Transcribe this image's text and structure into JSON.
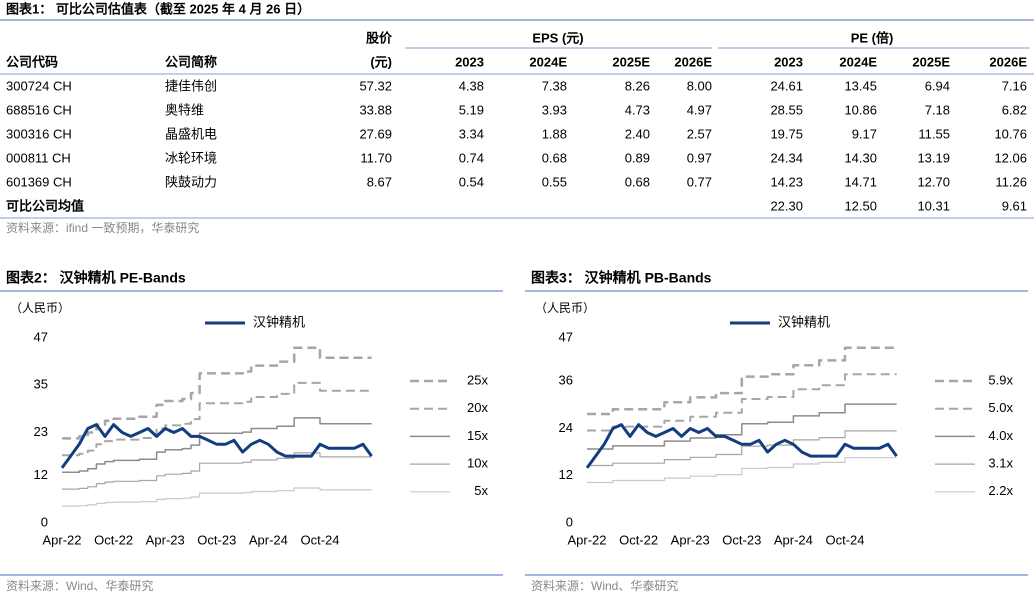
{
  "table": {
    "title": "图表1：  可比公司估值表（截至 2025 年 4 月 26 日）",
    "header_top": [
      "股价",
      "EPS (元)",
      "PE (倍)"
    ],
    "header": [
      "公司代码",
      "公司简称",
      "(元)",
      "2023",
      "2024E",
      "2025E",
      "2026E",
      "2023",
      "2024E",
      "2025E",
      "2026E"
    ],
    "rows": [
      [
        "300724 CH",
        "捷佳伟创",
        "57.32",
        "4.38",
        "7.38",
        "8.26",
        "8.00",
        "24.61",
        "13.45",
        "6.94",
        "7.16"
      ],
      [
        "688516 CH",
        "奥特维",
        "33.88",
        "5.19",
        "3.93",
        "4.73",
        "4.97",
        "28.55",
        "10.86",
        "7.18",
        "6.82"
      ],
      [
        "300316 CH",
        "晶盛机电",
        "27.69",
        "3.34",
        "1.88",
        "2.40",
        "2.57",
        "19.75",
        "9.17",
        "11.55",
        "10.76"
      ],
      [
        "000811 CH",
        "冰轮环境",
        "11.70",
        "0.74",
        "0.68",
        "0.89",
        "0.97",
        "24.34",
        "14.30",
        "13.19",
        "12.06"
      ],
      [
        "601369 CH",
        "陕鼓动力",
        "8.67",
        "0.54",
        "0.55",
        "0.68",
        "0.77",
        "14.23",
        "14.71",
        "12.70",
        "11.26"
      ]
    ],
    "average": {
      "label": "可比公司均值",
      "values": [
        "22.30",
        "12.50",
        "10.31",
        "9.61"
      ]
    },
    "source": "资料来源：ifind 一致预期，华泰研究"
  },
  "chart_data": [
    {
      "type": "line",
      "title": "图表2：  汉钟精机 PE-Bands",
      "y_label": "（人民币）",
      "source": "资料来源：Wind、华泰研究",
      "categories": [
        "Apr-22",
        null,
        null,
        null,
        null,
        null,
        "Oct-22",
        null,
        null,
        null,
        null,
        null,
        "Apr-23",
        null,
        null,
        null,
        null,
        null,
        "Oct-23",
        null,
        null,
        null,
        null,
        null,
        "Apr-24",
        null,
        null,
        null,
        null,
        null,
        "Oct-24",
        null,
        null,
        null,
        null,
        null,
        null
      ],
      "ylim": [
        0,
        47
      ],
      "yticks": [
        0,
        12,
        23,
        35,
        47
      ],
      "grid": false,
      "series": [
        {
          "name": "汉钟精机",
          "color": "#133d7f",
          "dash": false,
          "width": 3,
          "values": [
            14,
            17,
            20,
            24,
            25,
            22,
            25,
            23,
            22,
            23,
            24,
            22,
            24,
            23,
            24,
            22,
            22,
            21,
            20,
            20,
            21,
            18,
            20,
            21,
            20,
            18,
            17,
            17,
            17,
            17,
            20,
            19,
            19,
            19,
            19,
            20,
            17
          ]
        },
        {
          "name": "25x",
          "color": "#a6a6a6",
          "dash": true,
          "width": 2.5,
          "values": [
            21.5,
            21.5,
            22,
            23,
            25,
            26,
            26.5,
            26.5,
            26.5,
            27,
            27,
            30,
            31,
            31,
            31.5,
            33,
            38,
            38,
            38,
            38,
            38,
            38.5,
            40,
            40,
            40,
            41,
            41,
            44.5,
            44.5,
            44.5,
            42,
            42,
            42,
            42,
            42,
            42,
            42
          ]
        },
        {
          "name": "20x",
          "color": "#a6a6a6",
          "dash": true,
          "width": 2,
          "values": [
            17.2,
            17.2,
            17.6,
            18.4,
            20,
            20.8,
            21.2,
            21.2,
            21.2,
            21.6,
            21.6,
            24,
            24.8,
            24.8,
            25.2,
            26.4,
            30.4,
            30.4,
            30.4,
            30.4,
            30.4,
            30.8,
            32,
            32,
            32,
            32.8,
            32.8,
            35.6,
            35.6,
            35.6,
            33.6,
            33.6,
            33.6,
            33.6,
            33.6,
            33.6,
            33.6
          ]
        },
        {
          "name": "15x",
          "color": "#8c8c8c",
          "dash": false,
          "width": 1.5,
          "values": [
            12.9,
            12.9,
            13.2,
            13.8,
            15,
            15.6,
            15.9,
            15.9,
            15.9,
            16.2,
            16.2,
            18,
            18.6,
            18.6,
            18.9,
            19.8,
            22.8,
            22.8,
            22.8,
            22.8,
            22.8,
            23.1,
            24,
            24,
            24,
            24.6,
            24.6,
            26.7,
            26.7,
            26.7,
            25.2,
            25.2,
            25.2,
            25.2,
            25.2,
            25.2,
            25.2
          ]
        },
        {
          "name": "10x",
          "color": "#a6a6a6",
          "dash": false,
          "width": 1.2,
          "values": [
            8.6,
            8.6,
            8.8,
            9.2,
            10,
            10.4,
            10.6,
            10.6,
            10.6,
            10.8,
            10.8,
            12,
            12.4,
            12.4,
            12.6,
            13.2,
            15.2,
            15.2,
            15.2,
            15.2,
            15.2,
            15.4,
            16,
            16,
            16,
            16.4,
            16.4,
            17.8,
            17.8,
            17.8,
            16.8,
            16.8,
            16.8,
            16.8,
            16.8,
            16.8,
            16.8
          ]
        },
        {
          "name": "5x",
          "color": "#c8c8c8",
          "dash": false,
          "width": 1.2,
          "values": [
            4.3,
            4.3,
            4.4,
            4.6,
            5,
            5.2,
            5.3,
            5.3,
            5.3,
            5.4,
            5.4,
            6,
            6.2,
            6.2,
            6.3,
            6.6,
            7.6,
            7.6,
            7.6,
            7.6,
            7.6,
            7.7,
            8,
            8,
            8,
            8.2,
            8.2,
            8.9,
            8.9,
            8.9,
            8.4,
            8.4,
            8.4,
            8.4,
            8.4,
            8.4,
            8.4
          ]
        }
      ]
    },
    {
      "type": "line",
      "title": "图表3：  汉钟精机 PB-Bands",
      "y_label": "（人民币）",
      "source": "资料来源：Wind、华泰研究",
      "categories": [
        "Apr-22",
        null,
        null,
        null,
        null,
        null,
        "Oct-22",
        null,
        null,
        null,
        null,
        null,
        "Apr-23",
        null,
        null,
        null,
        null,
        null,
        "Oct-23",
        null,
        null,
        null,
        null,
        null,
        "Apr-24",
        null,
        null,
        null,
        null,
        null,
        "Oct-24",
        null,
        null,
        null,
        null,
        null,
        null
      ],
      "ylim": [
        0,
        47
      ],
      "yticks": [
        0,
        12,
        24,
        36,
        47
      ],
      "grid": false,
      "series": [
        {
          "name": "汉钟精机",
          "color": "#133d7f",
          "dash": false,
          "width": 3,
          "values": [
            14,
            17,
            20,
            24,
            25,
            22,
            25,
            23,
            22,
            23,
            24,
            22,
            24,
            23,
            24,
            22,
            22,
            21,
            20,
            20,
            21,
            18,
            20,
            21,
            20,
            18,
            17,
            17,
            17,
            17,
            20,
            19,
            19,
            19,
            19,
            20,
            17
          ]
        },
        {
          "name": "5.9x",
          "color": "#a6a6a6",
          "dash": true,
          "width": 2.5,
          "values": [
            27.7,
            27.7,
            27.7,
            28.9,
            28.9,
            28.9,
            28.9,
            28.9,
            28.9,
            30.7,
            30.7,
            30.7,
            31.9,
            31.9,
            31.9,
            33,
            33,
            33,
            37.2,
            37.2,
            37.2,
            37.8,
            37.8,
            37.8,
            40.1,
            40.1,
            40.1,
            41.3,
            41.3,
            41.3,
            44.5,
            44.5,
            44.5,
            44.5,
            44.5,
            44.5,
            44.5
          ]
        },
        {
          "name": "5.0x",
          "color": "#a6a6a6",
          "dash": true,
          "width": 2,
          "values": [
            23.5,
            23.5,
            23.5,
            24.5,
            24.5,
            24.5,
            24.5,
            24.5,
            24.5,
            26,
            26,
            26,
            27,
            27,
            27,
            28,
            28,
            28,
            31.5,
            31.5,
            31.5,
            32,
            32,
            32,
            34,
            34,
            34,
            35,
            35,
            35,
            37.8,
            37.8,
            37.8,
            37.8,
            37.8,
            37.8,
            37.8
          ]
        },
        {
          "name": "4.0x",
          "color": "#8c8c8c",
          "dash": false,
          "width": 1.5,
          "values": [
            18.8,
            18.8,
            18.8,
            19.6,
            19.6,
            19.6,
            19.6,
            19.6,
            19.6,
            20.8,
            20.8,
            20.8,
            21.6,
            21.6,
            21.6,
            22.4,
            22.4,
            22.4,
            25.2,
            25.2,
            25.2,
            25.6,
            25.6,
            25.6,
            27.2,
            27.2,
            27.2,
            28,
            28,
            28,
            30.2,
            30.2,
            30.2,
            30.2,
            30.2,
            30.2,
            30.2
          ]
        },
        {
          "name": "3.1x",
          "color": "#a6a6a6",
          "dash": false,
          "width": 1.2,
          "values": [
            14.6,
            14.6,
            14.6,
            15.2,
            15.2,
            15.2,
            15.2,
            15.2,
            15.2,
            16.1,
            16.1,
            16.1,
            16.7,
            16.7,
            16.7,
            17.4,
            17.4,
            17.4,
            19.5,
            19.5,
            19.5,
            19.8,
            19.8,
            19.8,
            21.1,
            21.1,
            21.1,
            21.7,
            21.7,
            21.7,
            23.4,
            23.4,
            23.4,
            23.4,
            23.4,
            23.4,
            23.4
          ]
        },
        {
          "name": "2.2x",
          "color": "#c8c8c8",
          "dash": false,
          "width": 1.2,
          "values": [
            10.3,
            10.3,
            10.3,
            10.8,
            10.8,
            10.8,
            10.8,
            10.8,
            10.8,
            11.4,
            11.4,
            11.4,
            11.9,
            11.9,
            11.9,
            12.3,
            12.3,
            12.3,
            13.9,
            13.9,
            13.9,
            14.1,
            14.1,
            14.1,
            15,
            15,
            15,
            15.4,
            15.4,
            15.4,
            16.6,
            16.6,
            16.6,
            16.6,
            16.6,
            16.6,
            16.6
          ]
        }
      ]
    }
  ]
}
